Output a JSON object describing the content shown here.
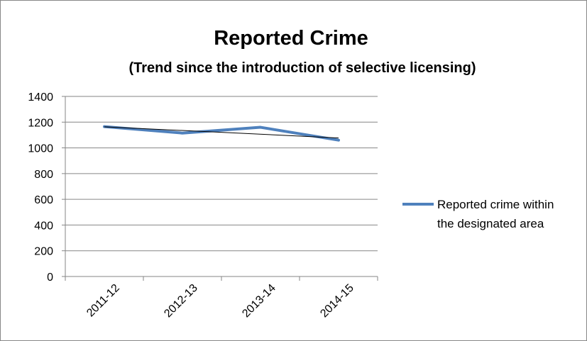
{
  "chart_data": {
    "type": "line",
    "title": "Reported Crime",
    "subtitle": "(Trend since the introduction of selective licensing)",
    "categories": [
      "2011-12",
      "2012-13",
      "2013-14",
      "2014-15"
    ],
    "series": [
      {
        "name": "Reported crime within the designated area",
        "values": [
          1165,
          1115,
          1160,
          1060
        ],
        "color": "#4F81BD"
      }
    ],
    "trendline": {
      "values": [
        1164,
        1129,
        1109,
        1077
      ],
      "color": "#000000"
    },
    "ylim": [
      0,
      1400
    ],
    "yticks": [
      0,
      200,
      400,
      600,
      800,
      1000,
      1200,
      1400
    ],
    "grid": true,
    "legend": "right",
    "legend_lines": [
      "Reported crime within",
      "the designated area"
    ]
  }
}
